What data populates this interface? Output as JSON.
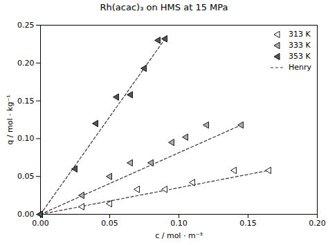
{
  "chart_data": {
    "type": "scatter",
    "title": "Rh(acac)₃ on HMS at 15 MPa",
    "xlabel": "c / mol · m⁻³",
    "ylabel": "q / mol · kg⁻¹",
    "xlim": [
      0.0,
      0.2
    ],
    "ylim": [
      0.0,
      0.25
    ],
    "xticks": [
      {
        "value": 0.0,
        "label": "0.00"
      },
      0.05,
      {
        "value": 0.1,
        "label": "0.10"
      },
      0.15,
      {
        "value": 0.2,
        "label": "0.20"
      }
    ],
    "yticks": [
      {
        "value": 0.0,
        "label": "0.00"
      },
      0.05,
      {
        "value": 0.1,
        "label": "0.10"
      },
      0.15,
      {
        "value": 0.2,
        "label": "0.20"
      },
      0.25
    ],
    "grid": false,
    "legend": "upper right",
    "series": [
      {
        "name": "313 K",
        "type": "scatter",
        "marker": "triangle-left",
        "color": "white",
        "x": [
          0.0,
          0.03,
          0.05,
          0.07,
          0.09,
          0.11,
          0.14,
          0.165
        ],
        "values": [
          0.0,
          0.01,
          0.014,
          0.033,
          0.033,
          0.042,
          0.058,
          0.058
        ]
      },
      {
        "name": "333 K",
        "type": "scatter",
        "marker": "triangle-left",
        "color": "#b0b0b0",
        "x": [
          0.0,
          0.03,
          0.05,
          0.065,
          0.08,
          0.095,
          0.105,
          0.12,
          0.145
        ],
        "values": [
          0.0,
          0.025,
          0.05,
          0.068,
          0.068,
          0.095,
          0.102,
          0.118,
          0.118
        ]
      },
      {
        "name": "353 K",
        "type": "scatter",
        "marker": "triangle-left",
        "color": "#555555",
        "x": [
          0.0,
          0.025,
          0.04,
          0.055,
          0.065,
          0.075,
          0.085,
          0.09
        ],
        "values": [
          0.0,
          0.06,
          0.12,
          0.155,
          0.158,
          0.193,
          0.23,
          0.232
        ]
      },
      {
        "name": "Henry",
        "type": "line",
        "line_style": "dashed",
        "color": "#333333",
        "x": [
          0.0,
          0.165,
          null,
          0.0,
          0.145,
          null,
          0.0,
          0.09
        ],
        "values": [
          0.0,
          0.058,
          null,
          0.0,
          0.118,
          null,
          0.0,
          0.232
        ]
      }
    ]
  }
}
